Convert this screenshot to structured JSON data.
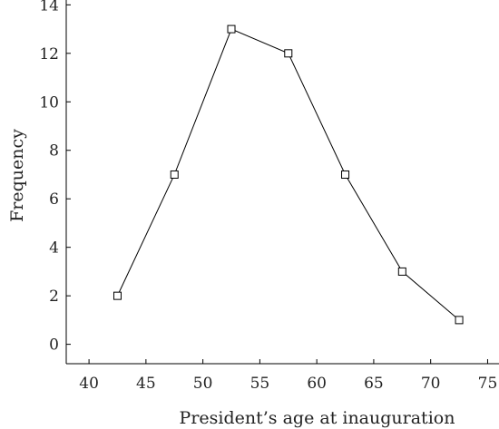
{
  "chart_data": {
    "type": "line",
    "title": "",
    "xlabel": "President’s age at inauguration",
    "ylabel": "Frequency",
    "xlim": [
      38,
      76
    ],
    "ylim": [
      -0.8,
      14.2
    ],
    "x_ticks": [
      40,
      45,
      50,
      55,
      60,
      65,
      70,
      75
    ],
    "y_ticks": [
      0,
      2,
      4,
      6,
      8,
      10,
      12,
      14
    ],
    "grid": false,
    "legend": "none",
    "marker": "square",
    "line_color": "#000000",
    "series": [
      {
        "x": [
          42.5,
          47.5,
          52.5,
          57.5,
          62.5,
          67.5,
          72.5
        ],
        "y": [
          2,
          7,
          13,
          12,
          7,
          3,
          1
        ]
      }
    ]
  }
}
